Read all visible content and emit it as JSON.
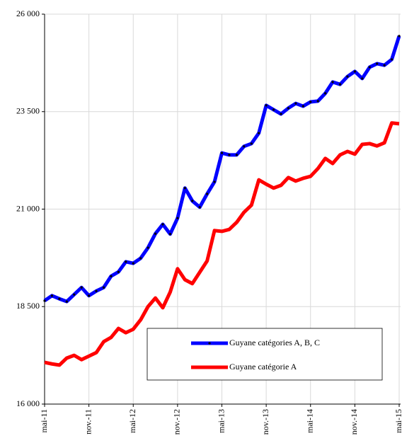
{
  "chart_data": {
    "type": "line",
    "categories": [
      "mai-11",
      null,
      null,
      null,
      null,
      null,
      "nov.-11",
      null,
      null,
      null,
      null,
      null,
      "mai-12",
      null,
      null,
      null,
      null,
      null,
      "nov.-12",
      null,
      null,
      null,
      null,
      null,
      "mai-13",
      null,
      null,
      null,
      null,
      null,
      "nov.-13",
      null,
      null,
      null,
      null,
      null,
      "mai-14",
      null,
      null,
      null,
      null,
      null,
      "nov.-14",
      null,
      null,
      null,
      null,
      null,
      "mai-15"
    ],
    "series": [
      {
        "name": "Guyane catégories A, B, C",
        "color": "#0000ff",
        "markers": true,
        "values": [
          18650,
          18780,
          18700,
          18630,
          18810,
          18990,
          18780,
          18900,
          18990,
          19280,
          19390,
          19650,
          19610,
          19740,
          20010,
          20370,
          20610,
          20360,
          20770,
          21540,
          21210,
          21050,
          21390,
          21700,
          22440,
          22390,
          22390,
          22610,
          22680,
          22950,
          23660,
          23550,
          23440,
          23590,
          23710,
          23640,
          23750,
          23770,
          23970,
          24260,
          24200,
          24400,
          24530,
          24350,
          24640,
          24730,
          24690,
          24840,
          25440
        ]
      },
      {
        "name": "Guyane catégorie A",
        "color": "#ff0000",
        "markers": false,
        "values": [
          17070,
          17030,
          17000,
          17180,
          17250,
          17140,
          17230,
          17320,
          17600,
          17710,
          17940,
          17830,
          17920,
          18160,
          18500,
          18720,
          18470,
          18870,
          19470,
          19190,
          19090,
          19380,
          19670,
          20450,
          20430,
          20480,
          20660,
          20920,
          21100,
          21750,
          21640,
          21540,
          21610,
          21810,
          21720,
          21790,
          21840,
          22040,
          22300,
          22170,
          22390,
          22480,
          22410,
          22660,
          22680,
          22620,
          22700,
          23210,
          23190
        ]
      }
    ],
    "ylim": [
      16000,
      26000
    ],
    "yticks": [
      {
        "value": 16000,
        "label": "16 000"
      },
      {
        "value": 18500,
        "label": "18 500"
      },
      {
        "value": 21000,
        "label": "21 000"
      },
      {
        "value": 23500,
        "label": "23 500"
      },
      {
        "value": 26000,
        "label": "26 000"
      }
    ],
    "grid": true,
    "legend": "lower right"
  }
}
